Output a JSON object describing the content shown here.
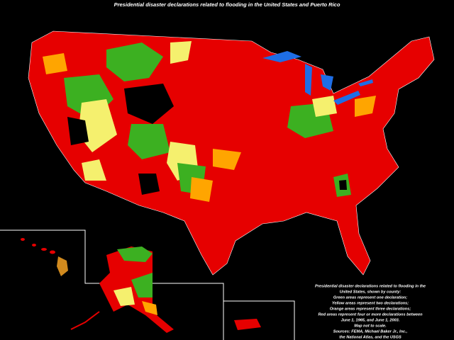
{
  "title": "Presidential disaster declarations related to flooding in the United States and Puerto Rico",
  "notes": [
    "Presidential disaster declarations related to flooding in the",
    "United States, shown by county:",
    "Green areas represent one declaration;",
    "Yellow areas represent two declarations;",
    "Orange areas represent three declarations;",
    "Red areas represent four or more declarations between",
    "June 1, 1965, and June 1, 2003.",
    "Map not to scale.",
    "Sources: FEMA, Michael Baker Jr., Inc.,",
    "the National Atlas, and the USGS"
  ]
}
